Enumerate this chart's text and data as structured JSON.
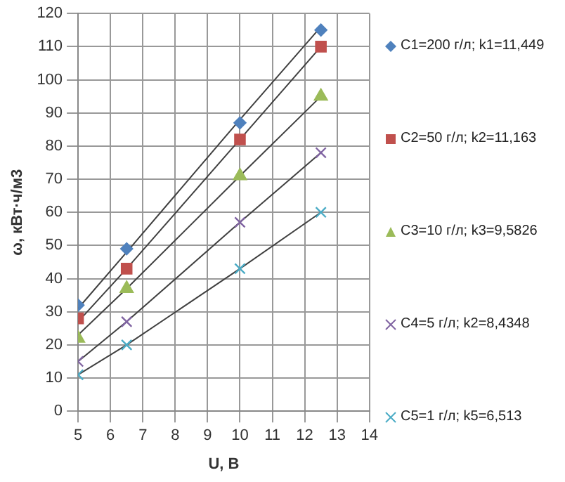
{
  "chart_data": {
    "type": "scatter",
    "xlabel": "U, В",
    "ylabel": "ω, кВт·ч/м3",
    "x": [
      5,
      6.5,
      10,
      12.5
    ],
    "series": [
      {
        "name": "C1=200 г/л; k1=11,449",
        "color": "#4f81bd",
        "marker": "diamond",
        "values": [
          32,
          49,
          87,
          115
        ]
      },
      {
        "name": "C2=50 г/л; k2=11,163",
        "color": "#c0504d",
        "marker": "square",
        "values": [
          28,
          43,
          82,
          110
        ]
      },
      {
        "name": "C3=10 г/л; k3=9,5826",
        "color": "#9bbb59",
        "marker": "triangle",
        "values": [
          22,
          37,
          71,
          95
        ]
      },
      {
        "name": "C4=5 г/л; k2=8,4348",
        "color": "#8064a2",
        "marker": "cross",
        "values": [
          15,
          27,
          57,
          78
        ]
      },
      {
        "name": "C5=1 г/л; k5=6,513",
        "color": "#4bacc6",
        "marker": "cross",
        "values": [
          11,
          20,
          43,
          60
        ]
      },
      {
        "type": "line",
        "color": "#404040",
        "marker": "none",
        "values": [
          31,
          48,
          88,
          116
        ]
      },
      {
        "type": "line",
        "color": "#404040",
        "marker": "none",
        "values": [
          27,
          43,
          82,
          110
        ]
      },
      {
        "type": "line",
        "color": "#404040",
        "marker": "none",
        "values": [
          23,
          37,
          71,
          95
        ]
      },
      {
        "type": "line",
        "color": "#404040",
        "marker": "none",
        "values": [
          15,
          27,
          57,
          78
        ]
      },
      {
        "type": "line",
        "color": "#404040",
        "marker": "none",
        "values": [
          11,
          20,
          43,
          60
        ]
      }
    ],
    "xlim": [
      5,
      14
    ],
    "xticks": [
      5,
      6,
      7,
      8,
      9,
      10,
      11,
      12,
      13,
      14
    ],
    "ylim": [
      0,
      120
    ],
    "yticks": [
      0,
      10,
      20,
      30,
      40,
      50,
      60,
      70,
      80,
      90,
      100,
      110,
      120
    ],
    "grid": true,
    "legend": "right"
  }
}
